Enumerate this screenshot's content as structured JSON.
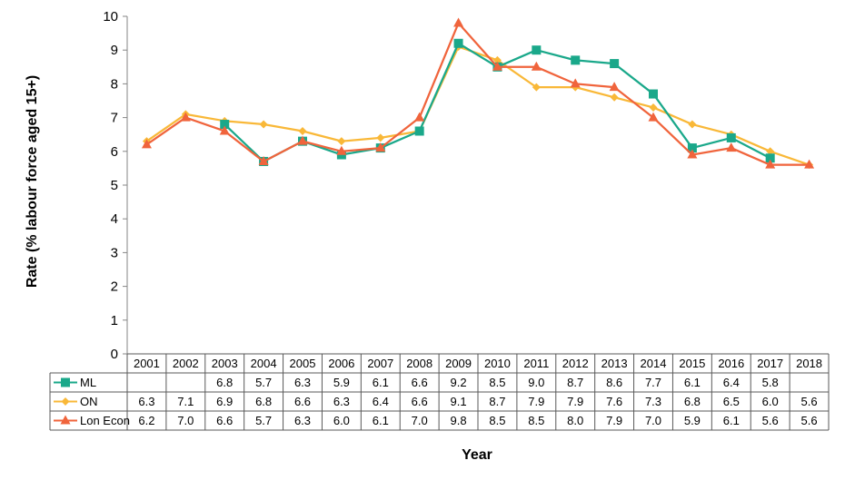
{
  "chart_data": {
    "type": "line",
    "title": "",
    "xlabel": "Year",
    "ylabel": "Rate (% labour force aged 15+)",
    "ylim": [
      0,
      10
    ],
    "yticks": [
      "0",
      "1",
      "2",
      "3",
      "4",
      "5",
      "6",
      "7",
      "8",
      "9",
      "10"
    ],
    "grid": false,
    "legend": "data-table",
    "categories": [
      "2001",
      "2002",
      "2003",
      "2004",
      "2005",
      "2006",
      "2007",
      "2008",
      "2009",
      "2010",
      "2011",
      "2012",
      "2013",
      "2014",
      "2015",
      "2016",
      "2017",
      "2018"
    ],
    "series": [
      {
        "name": "ML",
        "color": "#1aa88a",
        "marker": "square",
        "values": [
          null,
          null,
          6.8,
          5.7,
          6.3,
          5.9,
          6.1,
          6.6,
          9.2,
          8.5,
          9.0,
          8.7,
          8.6,
          7.7,
          6.1,
          6.4,
          5.8,
          null
        ],
        "labels": [
          "",
          "",
          "6.8",
          "5.7",
          "6.3",
          "5.9",
          "6.1",
          "6.6",
          "9.2",
          "8.5",
          "9.0",
          "8.7",
          "8.6",
          "7.7",
          "6.1",
          "6.4",
          "5.8",
          ""
        ]
      },
      {
        "name": "ON",
        "color": "#f9b838",
        "marker": "diamond",
        "values": [
          6.3,
          7.1,
          6.9,
          6.8,
          6.6,
          6.3,
          6.4,
          6.6,
          9.1,
          8.7,
          7.9,
          7.9,
          7.6,
          7.3,
          6.8,
          6.5,
          6.0,
          5.6
        ],
        "labels": [
          "6.3",
          "7.1",
          "6.9",
          "6.8",
          "6.6",
          "6.3",
          "6.4",
          "6.6",
          "9.1",
          "8.7",
          "7.9",
          "7.9",
          "7.6",
          "7.3",
          "6.8",
          "6.5",
          "6.0",
          "5.6"
        ]
      },
      {
        "name": "Lon Econ",
        "color": "#f0643c",
        "marker": "triangle",
        "values": [
          6.2,
          7.0,
          6.6,
          5.7,
          6.3,
          6.0,
          6.1,
          7.0,
          9.8,
          8.5,
          8.5,
          8.0,
          7.9,
          7.0,
          5.9,
          6.1,
          5.6,
          5.6
        ],
        "labels": [
          "6.2",
          "7.0",
          "6.6",
          "5.7",
          "6.3",
          "6.0",
          "6.1",
          "7.0",
          "9.8",
          "8.5",
          "8.5",
          "8.0",
          "7.9",
          "7.0",
          "5.9",
          "6.1",
          "5.6",
          "5.6"
        ]
      }
    ]
  }
}
